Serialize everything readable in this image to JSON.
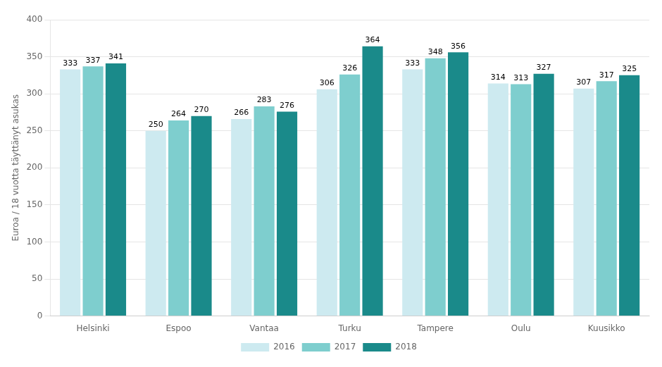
{
  "chart_data": {
    "type": "bar",
    "categories": [
      "Helsinki",
      "Espoo",
      "Vantaa",
      "Turku",
      "Tampere",
      "Oulu",
      "Kuusikko"
    ],
    "series": [
      {
        "name": "2016",
        "color": "#cdeaf0",
        "values": [
          333,
          250,
          266,
          306,
          333,
          314,
          307
        ]
      },
      {
        "name": "2017",
        "color": "#7ecece",
        "values": [
          337,
          264,
          283,
          326,
          348,
          313,
          317
        ]
      },
      {
        "name": "2018",
        "color": "#1a8a8a",
        "values": [
          341,
          270,
          276,
          364,
          356,
          327,
          325
        ]
      }
    ],
    "ylabel": "Euroa / 18 vuotta täyttänyt asukas",
    "ylim": [
      0,
      400
    ],
    "yticks": [
      0,
      50,
      100,
      150,
      200,
      250,
      300,
      350,
      400
    ],
    "grid": true,
    "legend": "bottom",
    "data_labels": true
  }
}
